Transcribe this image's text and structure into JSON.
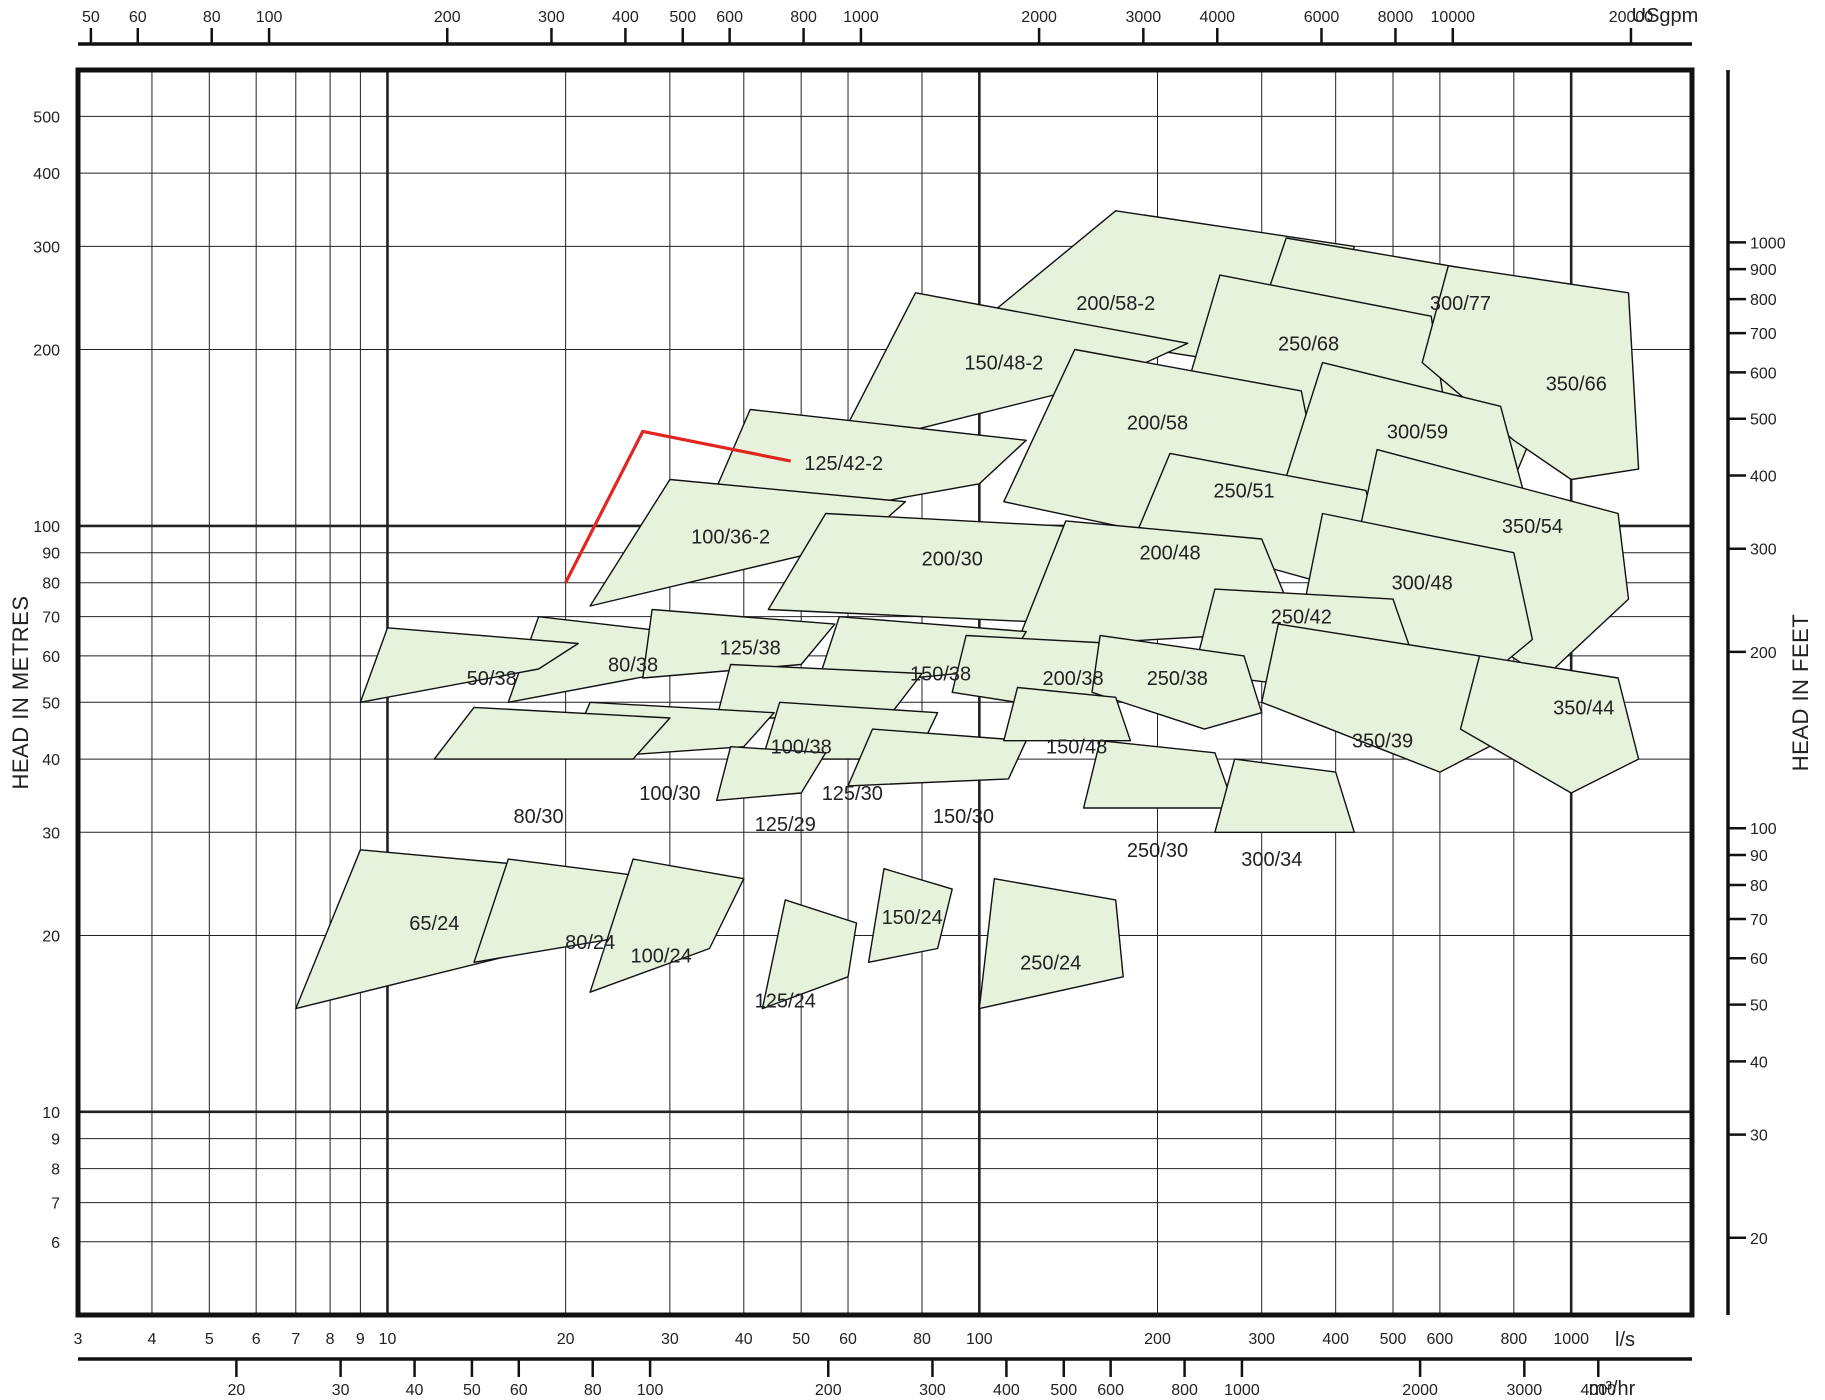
{
  "chart_data": {
    "type": "area",
    "title": "",
    "colors": {
      "region_fill": "#e6f2dc",
      "region_stroke": "#111111",
      "highlight": "#e0261e",
      "grid": "#222222",
      "frame": "#111111"
    },
    "axes": {
      "flow_ls": {
        "label": "l/s",
        "scale": "log",
        "range": [
          3,
          1600
        ],
        "ticks": [
          3,
          4,
          5,
          6,
          7,
          8,
          9,
          10,
          20,
          30,
          40,
          50,
          60,
          80,
          100,
          200,
          300,
          400,
          500,
          600,
          800,
          1000
        ]
      },
      "flow_m3hr": {
        "label": "m³/hr",
        "ticks": [
          20,
          30,
          40,
          50,
          60,
          80,
          100,
          200,
          300,
          400,
          500,
          600,
          800,
          1000,
          2000,
          3000,
          4000
        ]
      },
      "flow_usgpm": {
        "label": "USgpm",
        "ticks": [
          50,
          60,
          80,
          100,
          200,
          300,
          400,
          500,
          600,
          800,
          1000,
          2000,
          3000,
          4000,
          6000,
          8000,
          10000,
          20000
        ]
      },
      "head_m": {
        "label": "HEAD IN METRES",
        "scale": "log",
        "range": [
          4.5,
          600
        ],
        "ticks": [
          6,
          7,
          8,
          9,
          10,
          20,
          30,
          40,
          50,
          60,
          70,
          80,
          90,
          100,
          200,
          300,
          400,
          500
        ]
      },
      "head_ft": {
        "label": "HEAD IN FEET",
        "ticks": [
          20,
          30,
          40,
          50,
          60,
          70,
          80,
          90,
          100,
          200,
          300,
          400,
          500,
          600,
          700,
          800,
          900,
          1000
        ]
      }
    },
    "pumps": [
      {
        "name": "200/58-2",
        "poly": [
          [
            100,
            222
          ],
          [
            170,
            345
          ],
          [
            430,
            300
          ],
          [
            380,
            180
          ]
        ],
        "label": [
          170,
          240
        ]
      },
      {
        "name": "300/77",
        "poly": [
          [
            280,
            190
          ],
          [
            330,
            310
          ],
          [
            820,
            265
          ],
          [
            900,
            160
          ],
          [
            800,
            120
          ],
          [
            500,
            135
          ]
        ],
        "label": [
          650,
          240
        ]
      },
      {
        "name": "150/48-2",
        "poly": [
          [
            57,
            135
          ],
          [
            78,
            250
          ],
          [
            225,
            205
          ],
          [
            160,
            175
          ]
        ],
        "label": [
          110,
          190
        ]
      },
      {
        "name": "250/68",
        "poly": [
          [
            225,
            175
          ],
          [
            255,
            268
          ],
          [
            580,
            228
          ],
          [
            620,
            145
          ],
          [
            520,
            115
          ],
          [
            400,
            120
          ]
        ],
        "label": [
          360,
          205
        ]
      },
      {
        "name": "350/66",
        "poly": [
          [
            560,
            190
          ],
          [
            620,
            278
          ],
          [
            1250,
            250
          ],
          [
            1300,
            125
          ],
          [
            1000,
            120
          ],
          [
            800,
            140
          ]
        ],
        "label": [
          1020,
          175
        ]
      },
      {
        "name": "200/58",
        "poly": [
          [
            110,
            110
          ],
          [
            145,
            200
          ],
          [
            350,
            170
          ],
          [
            380,
            112
          ],
          [
            280,
            90
          ]
        ],
        "label": [
          200,
          150
        ]
      },
      {
        "name": "300/59",
        "poly": [
          [
            320,
            110
          ],
          [
            380,
            190
          ],
          [
            760,
            160
          ],
          [
            850,
            105
          ],
          [
            650,
            80
          ],
          [
            500,
            95
          ]
        ],
        "label": [
          550,
          145
        ]
      },
      {
        "name": "125/42-2",
        "poly": [
          [
            33,
            95
          ],
          [
            41,
            158
          ],
          [
            120,
            140
          ],
          [
            100,
            118
          ],
          [
            75,
            112
          ]
        ],
        "label": [
          59,
          128
        ]
      },
      {
        "name": "250/51",
        "poly": [
          [
            185,
            98
          ],
          [
            210,
            133
          ],
          [
            450,
            115
          ],
          [
            480,
            90
          ],
          [
            380,
            80
          ]
        ],
        "label": [
          280,
          115
        ]
      },
      {
        "name": "100/36-2",
        "poly": [
          [
            22,
            73
          ],
          [
            30,
            120
          ],
          [
            75,
            110
          ],
          [
            63,
            94
          ]
        ],
        "label": [
          38,
          96
        ]
      },
      {
        "name": "350/54",
        "poly": [
          [
            420,
            80
          ],
          [
            470,
            135
          ],
          [
            1200,
            105
          ],
          [
            1250,
            75
          ],
          [
            900,
            55
          ],
          [
            700,
            65
          ]
        ],
        "label": [
          860,
          100
        ]
      },
      {
        "name": "200/30",
        "poly": [
          [
            44,
            72
          ],
          [
            55,
            105
          ],
          [
            200,
            98
          ],
          [
            210,
            80
          ],
          [
            150,
            68
          ]
        ],
        "label": [
          90,
          88
        ]
      },
      {
        "name": "200/48",
        "poly": [
          [
            115,
            62
          ],
          [
            140,
            102
          ],
          [
            300,
            95
          ],
          [
            330,
            75
          ],
          [
            260,
            65
          ]
        ],
        "label": [
          210,
          90
        ]
      },
      {
        "name": "300/48",
        "poly": [
          [
            340,
            60
          ],
          [
            380,
            105
          ],
          [
            800,
            90
          ],
          [
            860,
            64
          ],
          [
            640,
            50
          ]
        ],
        "label": [
          560,
          80
        ]
      },
      {
        "name": "250/42",
        "poly": [
          [
            230,
            56
          ],
          [
            250,
            78
          ],
          [
            500,
            75
          ],
          [
            540,
            60
          ],
          [
            430,
            52
          ]
        ],
        "label": [
          350,
          70
        ]
      },
      {
        "name": "80/38",
        "poly": [
          [
            16,
            50
          ],
          [
            18,
            70
          ],
          [
            34,
            65
          ],
          [
            29,
            56
          ]
        ],
        "label": [
          26,
          58
        ]
      },
      {
        "name": "50/38",
        "poly": [
          [
            9,
            50
          ],
          [
            10,
            67
          ],
          [
            21,
            63
          ],
          [
            18,
            57
          ]
        ],
        "label": [
          15,
          55
        ]
      },
      {
        "name": "125/38",
        "poly": [
          [
            27,
            55
          ],
          [
            28,
            72
          ],
          [
            57,
            68
          ],
          [
            50,
            58
          ]
        ],
        "label": [
          41,
          62
        ]
      },
      {
        "name": "150/38",
        "poly": [
          [
            53,
            53
          ],
          [
            58,
            70
          ],
          [
            120,
            66
          ],
          [
            110,
            57
          ]
        ],
        "label": [
          86,
          56
        ]
      },
      {
        "name": "200/38",
        "poly": [
          [
            90,
            52
          ],
          [
            95,
            65
          ],
          [
            170,
            63
          ],
          [
            180,
            52
          ],
          [
            150,
            48
          ]
        ],
        "label": [
          144,
          55
        ]
      },
      {
        "name": "250/38",
        "poly": [
          [
            155,
            52
          ],
          [
            160,
            65
          ],
          [
            280,
            60
          ],
          [
            300,
            48
          ],
          [
            240,
            45
          ]
        ],
        "label": [
          216,
          55
        ]
      },
      {
        "name": "350/39",
        "poly": [
          [
            300,
            50
          ],
          [
            320,
            68
          ],
          [
            700,
            60
          ],
          [
            760,
            43
          ],
          [
            600,
            38
          ]
        ],
        "label": [
          480,
          43
        ]
      },
      {
        "name": "350/44",
        "poly": [
          [
            650,
            45
          ],
          [
            700,
            60
          ],
          [
            1200,
            55
          ],
          [
            1300,
            40
          ],
          [
            1000,
            35
          ]
        ],
        "label": [
          1050,
          49
        ]
      },
      {
        "name": "100/38",
        "poly": [
          [
            36,
            47
          ],
          [
            38,
            58
          ],
          [
            80,
            56
          ],
          [
            70,
            47
          ]
        ],
        "label": [
          50,
          42
        ]
      },
      {
        "name": "100/30",
        "poly": [
          [
            20,
            40
          ],
          [
            22,
            50
          ],
          [
            45,
            48
          ],
          [
            40,
            42
          ]
        ],
        "label": [
          30,
          35
        ]
      },
      {
        "name": "80/30",
        "poly": [
          [
            12,
            40
          ],
          [
            14,
            49
          ],
          [
            30,
            47
          ],
          [
            26,
            40
          ]
        ],
        "label": [
          18,
          32
        ]
      },
      {
        "name": "125/30",
        "poly": [
          [
            43,
            40
          ],
          [
            46,
            50
          ],
          [
            85,
            48
          ],
          [
            78,
            40
          ]
        ],
        "label": [
          61,
          35
        ]
      },
      {
        "name": "125/29",
        "poly": [
          [
            36,
            34
          ],
          [
            38,
            42
          ],
          [
            55,
            41
          ],
          [
            50,
            35
          ]
        ],
        "label": [
          47,
          31
        ]
      },
      {
        "name": "150/30",
        "poly": [
          [
            60,
            36
          ],
          [
            66,
            45
          ],
          [
            120,
            43
          ],
          [
            112,
            37
          ]
        ],
        "label": [
          94,
          32
        ]
      },
      {
        "name": "150/48",
        "poly": [
          [
            110,
            43
          ],
          [
            116,
            53
          ],
          [
            170,
            51
          ],
          [
            180,
            43
          ]
        ],
        "label": [
          146,
          42
        ]
      },
      {
        "name": "250/30",
        "poly": [
          [
            150,
            33
          ],
          [
            160,
            43
          ],
          [
            250,
            41
          ],
          [
            270,
            33
          ]
        ],
        "label": [
          200,
          28
        ]
      },
      {
        "name": "300/34",
        "poly": [
          [
            250,
            30
          ],
          [
            270,
            40
          ],
          [
            400,
            38
          ],
          [
            430,
            30
          ]
        ],
        "label": [
          312,
          27
        ]
      },
      {
        "name": "65/24",
        "poly": [
          [
            7,
            15
          ],
          [
            9,
            28
          ],
          [
            20,
            26
          ],
          [
            18,
            19
          ]
        ],
        "label": [
          12,
          21
        ]
      },
      {
        "name": "80/24",
        "poly": [
          [
            14,
            18
          ],
          [
            16,
            27
          ],
          [
            29,
            25
          ],
          [
            26,
            20
          ]
        ],
        "label": [
          22,
          19.5
        ]
      },
      {
        "name": "100/24",
        "poly": [
          [
            22,
            16
          ],
          [
            26,
            27
          ],
          [
            40,
            25
          ],
          [
            35,
            19
          ]
        ],
        "label": [
          29,
          18.5
        ]
      },
      {
        "name": "125/24",
        "poly": [
          [
            43,
            15
          ],
          [
            47,
            23
          ],
          [
            62,
            21
          ],
          [
            60,
            17
          ]
        ],
        "label": [
          47,
          15.5
        ]
      },
      {
        "name": "150/24",
        "poly": [
          [
            65,
            18
          ],
          [
            69,
            26
          ],
          [
            90,
            24
          ],
          [
            85,
            19
          ]
        ],
        "label": [
          77,
          21.5
        ]
      },
      {
        "name": "250/24",
        "poly": [
          [
            100,
            15
          ],
          [
            106,
            25
          ],
          [
            170,
            23
          ],
          [
            175,
            17
          ]
        ],
        "label": [
          132,
          18
        ]
      }
    ],
    "highlight_curve": [
      [
        20,
        80
      ],
      [
        27,
        145
      ],
      [
        48,
        129
      ]
    ]
  }
}
